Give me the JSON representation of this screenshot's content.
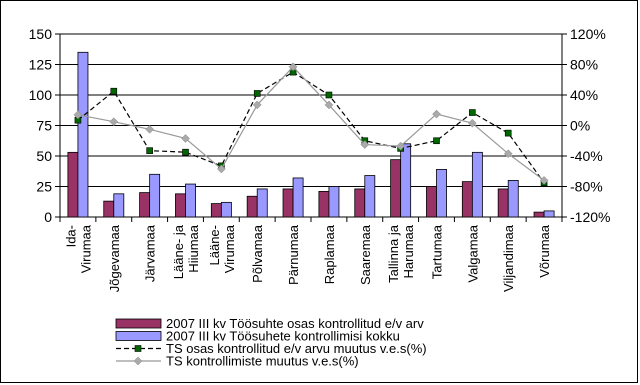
{
  "chart_data": {
    "type": "bar",
    "categories": [
      [
        "Ida-",
        "Virumaa"
      ],
      [
        "Jõgevamaa"
      ],
      [
        "Järvamaa"
      ],
      [
        "Lääne- ja",
        "Hiiumaa"
      ],
      [
        "Lääne-",
        "Virumaa"
      ],
      [
        "Põlvamaa"
      ],
      [
        "Pärnumaa"
      ],
      [
        "Raplamaa"
      ],
      [
        "Saaremaa"
      ],
      [
        "Tallinna ja",
        "Harumaa"
      ],
      [
        "Tartumaa"
      ],
      [
        "Valgamaa"
      ],
      [
        "Viljandimaa"
      ],
      [
        "Võrumaa"
      ]
    ],
    "y_left": {
      "ylim": [
        0,
        150
      ],
      "ticks": [
        0,
        25,
        50,
        75,
        100,
        125,
        150
      ]
    },
    "y_right": {
      "ylim": [
        -120,
        120
      ],
      "ticks": [
        -120,
        -80,
        -40,
        0,
        40,
        80,
        120
      ],
      "tick_suffix": "%"
    },
    "series": [
      {
        "name": "2007 III kv Töösuhte osas kontrollitud e/v arv",
        "kind": "bar",
        "axis": "left",
        "color": "#993366",
        "values": [
          53,
          13,
          20,
          19,
          11,
          17,
          23,
          21,
          23,
          47,
          25,
          29,
          23,
          4
        ]
      },
      {
        "name": "2007 III kv Töösuhete kontrollimisi kokku",
        "kind": "bar",
        "axis": "left",
        "color": "#9999ff",
        "values": [
          135,
          19,
          35,
          27,
          12,
          23,
          32,
          25,
          34,
          60,
          39,
          53,
          30,
          5
        ]
      },
      {
        "name": "TS osas kontrollitud e/v arvu muutus v.e.s(%)",
        "kind": "line",
        "axis": "right",
        "color": "#000000",
        "dash": true,
        "marker": "square",
        "values": [
          7,
          45,
          -33,
          -35,
          -53,
          42,
          70,
          40,
          -20,
          -30,
          -20,
          17,
          -10,
          -75
        ]
      },
      {
        "name": "TS kontrollimiste muutus v.e.s(%)",
        "kind": "line",
        "axis": "right",
        "color": "#999999",
        "dash": false,
        "marker": "diamond",
        "values": [
          14,
          5,
          -5,
          -17,
          -57,
          27,
          77,
          27,
          -25,
          -27,
          15,
          3,
          -37,
          -72
        ]
      }
    ],
    "grid": true,
    "legend_position": "bottom"
  }
}
